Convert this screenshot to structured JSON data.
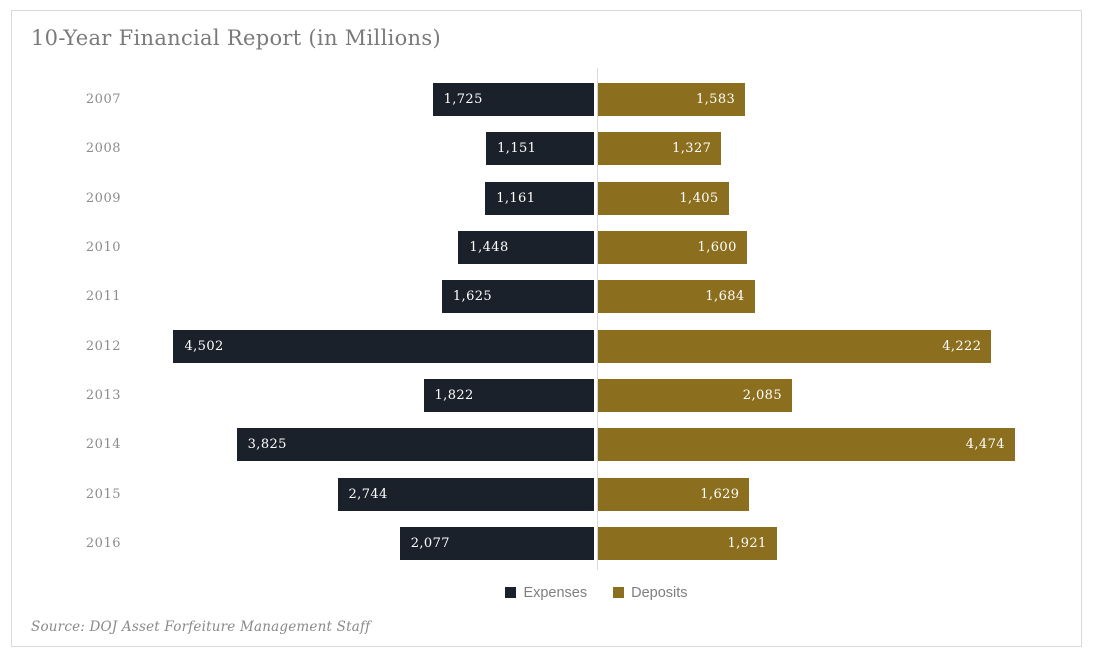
{
  "title": "10-Year Financial Report (in Millions)",
  "source": "Source: DOJ Asset Forfeiture Management Staff",
  "colors": {
    "expenses": "#1a212b",
    "deposits": "#8b6e1e",
    "gridline": "#d9d9d9",
    "title_text": "#7a7a7a",
    "axis_text": "#8c8c8c",
    "legend_text": "#7f7f7f",
    "bar_label_text": "#ffffff"
  },
  "legend": [
    {
      "label": "Expenses",
      "color": "#1a212b"
    },
    {
      "label": "Deposits",
      "color": "#8b6e1e"
    }
  ],
  "chart_data": {
    "type": "bar",
    "subtype": "diverging-horizontal",
    "title": "10-Year Financial Report (in Millions)",
    "categories": [
      "2007",
      "2008",
      "2009",
      "2010",
      "2011",
      "2012",
      "2013",
      "2014",
      "2015",
      "2016"
    ],
    "series": [
      {
        "name": "Expenses",
        "direction": "left",
        "color": "#1a212b",
        "values": [
          1725,
          1151,
          1161,
          1448,
          1625,
          4502,
          1822,
          3825,
          2744,
          2077
        ],
        "labels": [
          "1,725",
          "1,151",
          "1,161",
          "1,448",
          "1,625",
          "4,502",
          "1,822",
          "3,825",
          "2,744",
          "2,077"
        ]
      },
      {
        "name": "Deposits",
        "direction": "right",
        "color": "#8b6e1e",
        "values": [
          1583,
          1327,
          1405,
          1600,
          1684,
          4222,
          2085,
          4474,
          1629,
          1921
        ],
        "labels": [
          "1,583",
          "1,327",
          "1,405",
          "1,600",
          "1,684",
          "4,222",
          "2,085",
          "4,474",
          "1,629",
          "1,921"
        ]
      }
    ],
    "axis_max_each_side": 5000,
    "grid": "single-center-vertical-line",
    "legend_position": "bottom-center",
    "value_labels": "inside-outer-end"
  }
}
